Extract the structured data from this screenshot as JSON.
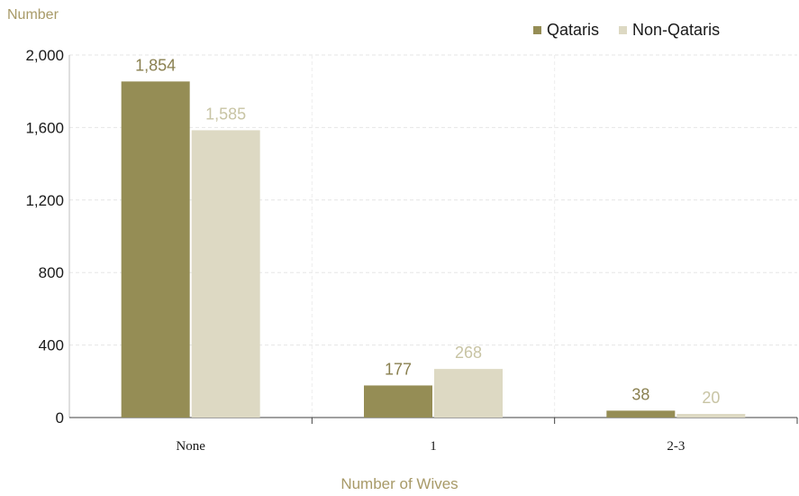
{
  "chart_data": {
    "type": "bar",
    "ylabel": "Number",
    "xlabel": "Number of Wives",
    "categories": [
      "None",
      "1",
      "2-3"
    ],
    "series": [
      {
        "name": "Qataris",
        "values": [
          1854,
          177,
          38
        ],
        "color": "#958d55",
        "label_color": "#8a8050"
      },
      {
        "name": "Non-Qataris",
        "values": [
          1585,
          268,
          20
        ],
        "color": "#ddd9c3",
        "label_color": "#c8c4a4"
      }
    ],
    "ylim": [
      0,
      2000
    ],
    "yticks": [
      0,
      400,
      800,
      1200,
      1600,
      2000
    ],
    "ytick_labels": [
      "0",
      "400",
      "800",
      "1,200",
      "1,600",
      "2,000"
    ],
    "value_labels": [
      [
        "1,854",
        "177",
        "38"
      ],
      [
        "1,585",
        "268",
        "20"
      ]
    ],
    "grid": true,
    "legend_position": "top-right"
  }
}
